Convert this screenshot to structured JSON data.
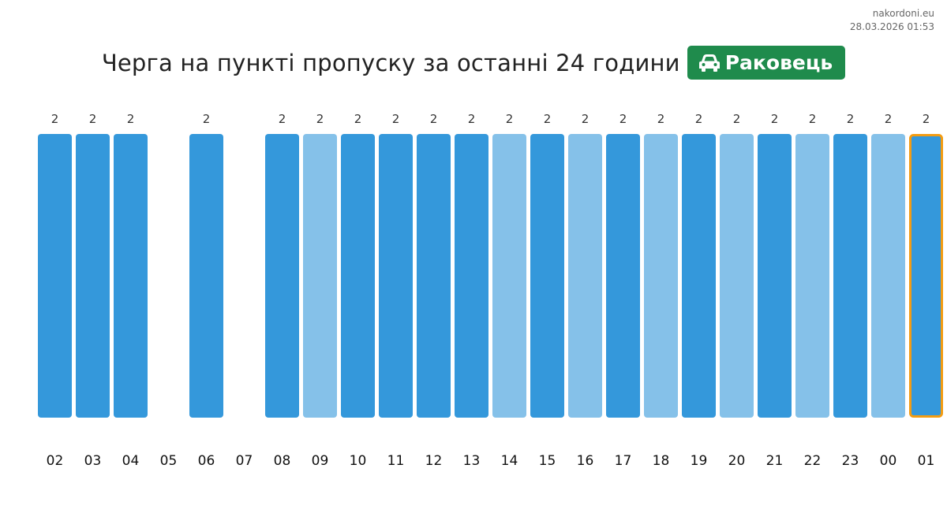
{
  "site": "nakordoni.eu",
  "timestamp": "28.03.2026 01:53",
  "title": "Черга на пункті пропуску за останні 24 години",
  "checkpoint": {
    "name": "Раковець",
    "icon": "car-icon"
  },
  "colors": {
    "dark": "#3498db",
    "light": "#85c1e9",
    "highlight": "#f39c12",
    "badge": "#1f8b4c"
  },
  "chart_data": {
    "type": "bar",
    "categories": [
      "02",
      "03",
      "04",
      "05",
      "06",
      "07",
      "08",
      "09",
      "10",
      "11",
      "12",
      "13",
      "14",
      "15",
      "16",
      "17",
      "18",
      "19",
      "20",
      "21",
      "22",
      "23",
      "00",
      "01"
    ],
    "values": [
      2,
      2,
      2,
      null,
      2,
      null,
      2,
      2,
      2,
      2,
      2,
      2,
      2,
      2,
      2,
      2,
      2,
      2,
      2,
      2,
      2,
      2,
      2,
      2
    ],
    "shade": [
      "dark",
      "dark",
      "dark",
      null,
      "dark",
      null,
      "dark",
      "light",
      "dark",
      "dark",
      "dark",
      "dark",
      "light",
      "dark",
      "light",
      "dark",
      "light",
      "dark",
      "light",
      "dark",
      "light",
      "dark",
      "light",
      "dark"
    ],
    "highlight_index": 23,
    "ylim": [
      0,
      2
    ]
  }
}
